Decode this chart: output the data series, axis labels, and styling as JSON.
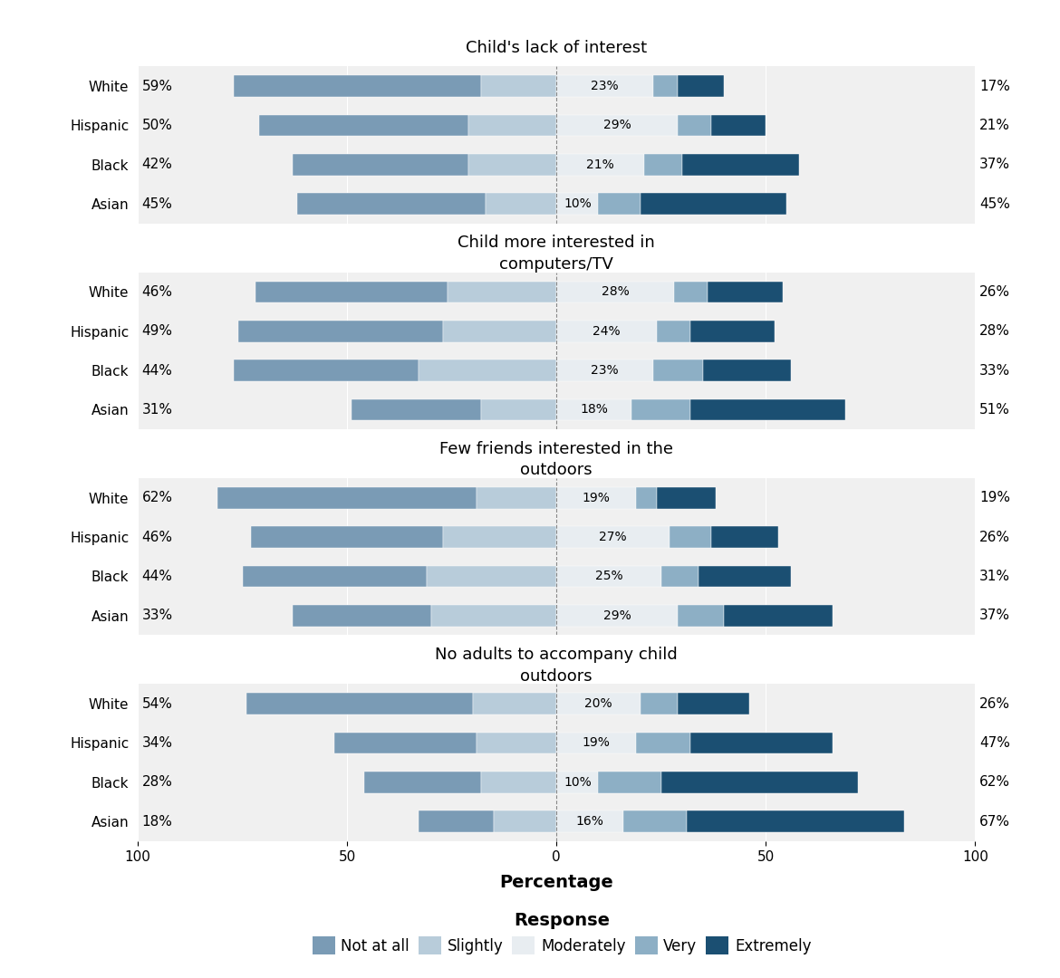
{
  "panels": [
    {
      "title": "Child's lack of interest",
      "races": [
        "White",
        "Hispanic",
        "Black",
        "Asian"
      ],
      "not_at_all": [
        59,
        50,
        42,
        45
      ],
      "slightly": [
        18,
        21,
        21,
        17
      ],
      "moderately": [
        23,
        29,
        21,
        10
      ],
      "very": [
        6,
        8,
        9,
        10
      ],
      "extremely": [
        11,
        13,
        28,
        35
      ],
      "left_labels": [
        "59%",
        "50%",
        "42%",
        "45%"
      ],
      "center_labels": [
        "23%",
        "29%",
        "21%",
        "10%"
      ],
      "right_labels": [
        "17%",
        "21%",
        "37%",
        "45%"
      ]
    },
    {
      "title": "Child more interested in\ncomputers/TV",
      "races": [
        "White",
        "Hispanic",
        "Black",
        "Asian"
      ],
      "not_at_all": [
        46,
        49,
        44,
        31
      ],
      "slightly": [
        26,
        27,
        33,
        18
      ],
      "moderately": [
        28,
        24,
        23,
        18
      ],
      "very": [
        8,
        8,
        12,
        14
      ],
      "extremely": [
        18,
        20,
        21,
        37
      ],
      "left_labels": [
        "46%",
        "49%",
        "44%",
        "31%"
      ],
      "center_labels": [
        "28%",
        "24%",
        "23%",
        "18%"
      ],
      "right_labels": [
        "26%",
        "28%",
        "33%",
        "51%"
      ]
    },
    {
      "title": "Few friends interested in the\noutdoors",
      "races": [
        "White",
        "Hispanic",
        "Black",
        "Asian"
      ],
      "not_at_all": [
        62,
        46,
        44,
        33
      ],
      "slightly": [
        19,
        27,
        31,
        30
      ],
      "moderately": [
        19,
        27,
        25,
        29
      ],
      "very": [
        5,
        10,
        9,
        11
      ],
      "extremely": [
        14,
        16,
        22,
        26
      ],
      "left_labels": [
        "62%",
        "46%",
        "44%",
        "33%"
      ],
      "center_labels": [
        "19%",
        "27%",
        "25%",
        "29%"
      ],
      "right_labels": [
        "19%",
        "26%",
        "31%",
        "37%"
      ]
    },
    {
      "title": "No adults to accompany child\noutdoors",
      "races": [
        "White",
        "Hispanic",
        "Black",
        "Asian"
      ],
      "not_at_all": [
        54,
        34,
        28,
        18
      ],
      "slightly": [
        20,
        19,
        18,
        15
      ],
      "moderately": [
        20,
        19,
        10,
        16
      ],
      "very": [
        9,
        13,
        15,
        15
      ],
      "extremely": [
        17,
        34,
        47,
        52
      ],
      "left_labels": [
        "54%",
        "34%",
        "28%",
        "18%"
      ],
      "center_labels": [
        "20%",
        "19%",
        "10%",
        "16%"
      ],
      "right_labels": [
        "26%",
        "47%",
        "62%",
        "67%"
      ]
    }
  ],
  "colors": {
    "not_at_all": "#7A9BB5",
    "slightly": "#B8CCDA",
    "moderately": "#E8EDF1",
    "very": "#8DAFC5",
    "extremely": "#1B4F72"
  },
  "xlim": [
    -100,
    100
  ],
  "xticks": [
    -100,
    -50,
    0,
    50,
    100
  ],
  "xticklabels": [
    "100",
    "50",
    "0",
    "50",
    "100"
  ],
  "xlabel": "Percentage",
  "panel_bg": "#F0F0F0",
  "title_bg": "#E8E8E8",
  "plot_bg": "#FFFFFF",
  "bar_height": 0.55
}
